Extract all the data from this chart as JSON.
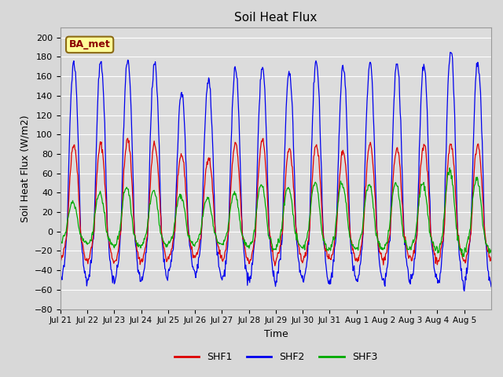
{
  "title": "Soil Heat Flux",
  "xlabel": "Time",
  "ylabel": "Soil Heat Flux (W/m2)",
  "ylim": [
    -80,
    210
  ],
  "yticks": [
    -80,
    -60,
    -40,
    -20,
    0,
    20,
    40,
    60,
    80,
    100,
    120,
    140,
    160,
    180,
    200
  ],
  "legend_label": "BA_met",
  "legend_label_color": "#8B0000",
  "legend_label_bg": "#FFFF99",
  "series": [
    "SHF1",
    "SHF2",
    "SHF3"
  ],
  "colors": [
    "#DD0000",
    "#0000EE",
    "#00AA00"
  ],
  "xtick_labels": [
    "Jul 21",
    "Jul 22",
    "Jul 23",
    "Jul 24",
    "Jul 25",
    "Jul 26",
    "Jul 27",
    "Jul 28",
    "Jul 29",
    "Jul 30",
    "Jul 31",
    "Aug 1",
    "Aug 2",
    "Aug 3",
    "Aug 4",
    "Aug 5"
  ],
  "n_days": 16
}
